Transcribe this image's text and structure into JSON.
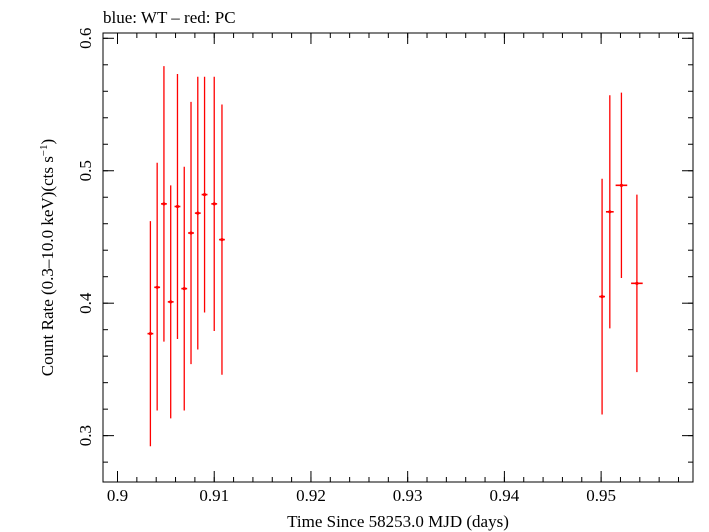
{
  "chart_data": {
    "type": "scatter",
    "title": "blue: WT – red: PC",
    "xlabel": "Time Since 58253.0 MJD (days)",
    "ylabel_main": "Count Rate (0.3–10.0 keV)(cts s",
    "ylabel_sup": "−1",
    "ylabel_close": ")",
    "xlim": [
      0.8985,
      0.9595
    ],
    "ylim": [
      0.265,
      0.604
    ],
    "x_ticks": [
      0.9,
      0.91,
      0.92,
      0.93,
      0.94,
      0.95
    ],
    "x_tick_labels": [
      "0.9",
      "0.91",
      "0.92",
      "0.93",
      "0.94",
      "0.95"
    ],
    "x_minor_step": 0.002,
    "y_ticks": [
      0.3,
      0.4,
      0.5,
      0.6
    ],
    "y_tick_labels": [
      "0.3",
      "0.4",
      "0.5",
      "0.6"
    ],
    "y_minor_step": 0.02,
    "grid": false,
    "series": [
      {
        "color": "#ff0000",
        "points": [
          {
            "x": 0.9034,
            "xerr": 0.0003,
            "y": 0.377,
            "yerr_lo": 0.085,
            "yerr_hi": 0.085
          },
          {
            "x": 0.9041,
            "xerr": 0.0003,
            "y": 0.412,
            "yerr_lo": 0.093,
            "yerr_hi": 0.094
          },
          {
            "x": 0.9048,
            "xerr": 0.0003,
            "y": 0.475,
            "yerr_lo": 0.104,
            "yerr_hi": 0.104
          },
          {
            "x": 0.9055,
            "xerr": 0.0003,
            "y": 0.401,
            "yerr_lo": 0.088,
            "yerr_hi": 0.088
          },
          {
            "x": 0.9062,
            "xerr": 0.0003,
            "y": 0.473,
            "yerr_lo": 0.1,
            "yerr_hi": 0.1
          },
          {
            "x": 0.9069,
            "xerr": 0.0003,
            "y": 0.411,
            "yerr_lo": 0.092,
            "yerr_hi": 0.092
          },
          {
            "x": 0.9076,
            "xerr": 0.0003,
            "y": 0.453,
            "yerr_lo": 0.099,
            "yerr_hi": 0.099
          },
          {
            "x": 0.9083,
            "xerr": 0.0003,
            "y": 0.468,
            "yerr_lo": 0.103,
            "yerr_hi": 0.103
          },
          {
            "x": 0.909,
            "xerr": 0.0003,
            "y": 0.482,
            "yerr_lo": 0.089,
            "yerr_hi": 0.089
          },
          {
            "x": 0.91,
            "xerr": 0.0003,
            "y": 0.475,
            "yerr_lo": 0.096,
            "yerr_hi": 0.096
          },
          {
            "x": 0.9108,
            "xerr": 0.0003,
            "y": 0.448,
            "yerr_lo": 0.102,
            "yerr_hi": 0.102
          },
          {
            "x": 0.9501,
            "xerr": 0.0003,
            "y": 0.405,
            "yerr_lo": 0.089,
            "yerr_hi": 0.089
          },
          {
            "x": 0.9509,
            "xerr": 0.0004,
            "y": 0.469,
            "yerr_lo": 0.088,
            "yerr_hi": 0.088
          },
          {
            "x": 0.9521,
            "xerr": 0.0006,
            "y": 0.489,
            "yerr_lo": 0.07,
            "yerr_hi": 0.07
          },
          {
            "x": 0.9537,
            "xerr": 0.0006,
            "y": 0.415,
            "yerr_lo": 0.067,
            "yerr_hi": 0.067
          }
        ]
      }
    ]
  }
}
